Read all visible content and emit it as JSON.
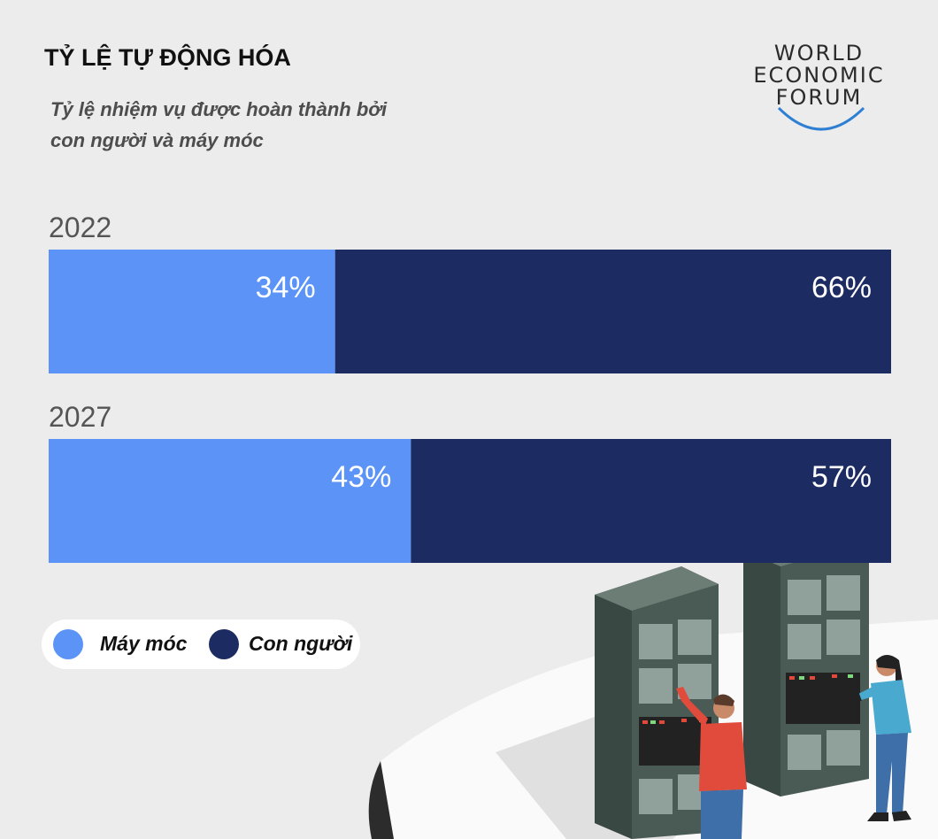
{
  "header": {
    "title": "TỶ LỆ TỰ ĐỘNG HÓA",
    "subtitle_line1": "Tỷ lệ nhiệm vụ được hoàn thành bởi",
    "subtitle_line2": "con người và máy móc"
  },
  "logo": {
    "line1": "WORLD",
    "line2": "ECONOMIC",
    "line3": "FORUM"
  },
  "chart_data": {
    "type": "bar",
    "orientation": "horizontal-stacked-100",
    "title": "TỶ LỆ TỰ ĐỘNG HÓA",
    "subtitle": "Tỷ lệ nhiệm vụ được hoàn thành bởi con người và máy móc",
    "categories": [
      "2022",
      "2027"
    ],
    "series": [
      {
        "name": "Máy móc",
        "values": [
          34,
          43
        ],
        "labels": [
          "34%",
          "43%"
        ],
        "color": "#5b93f7"
      },
      {
        "name": "Con người",
        "values": [
          66,
          57
        ],
        "labels": [
          "66%",
          "57%"
        ],
        "color": "#1d2b63"
      }
    ],
    "unit": "%",
    "xlim": [
      0,
      100
    ],
    "legend_position": "bottom-left"
  },
  "legend": {
    "items": [
      {
        "label": "Máy móc",
        "color": "#5b93f7"
      },
      {
        "label": "Con người",
        "color": "#1d2b63"
      }
    ]
  }
}
